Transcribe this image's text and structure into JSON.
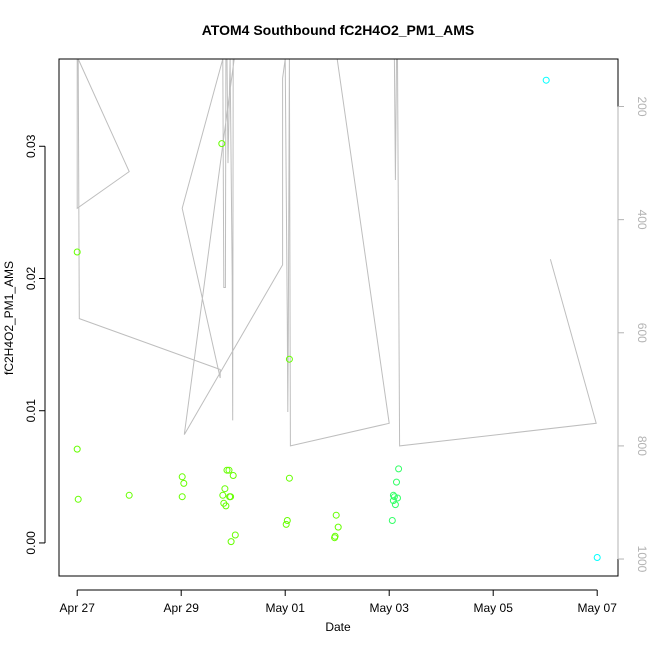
{
  "chart_data": {
    "type": "scatter",
    "title": "ATOM4 Southbound fC2H4O2_PM1_AMS",
    "xlabel": "Date",
    "ylabel": "fC2H4O2_PM1_AMS",
    "x_tick_labels": [
      "Apr 27",
      "Apr 29",
      "May 01",
      "May 03",
      "May 05",
      "May 07"
    ],
    "x_ticks": [
      27,
      29,
      31,
      33,
      35,
      37
    ],
    "xlim": [
      26.65,
      37.4
    ],
    "ylim": [
      -0.0025,
      0.0366
    ],
    "y_ticks": [
      0.0,
      0.01,
      0.02,
      0.03
    ],
    "y_tick_labels": [
      "0.00",
      "0.01",
      "0.02",
      "0.03"
    ],
    "y2_ticks": [
      200,
      400,
      600,
      800,
      1000
    ],
    "y2_tick_labels": [
      "200",
      "400",
      "600",
      "800",
      "1000"
    ],
    "y2lim": [
      1030,
      116
    ],
    "y2_reversed": true,
    "grid": false,
    "legend": "none",
    "colors": {
      "points_low": "#66ff00",
      "points_mid": "#33ff66",
      "points_high": "#00ffff",
      "secondary_line": "#bebebe",
      "secondary_axis": "#b3b3b3"
    },
    "series": [
      {
        "kind": "points",
        "points": [
          {
            "x": 27.0,
            "y": 0.0071,
            "color": "#66ff00"
          },
          {
            "x": 27.0,
            "y": 0.022,
            "color": "#66ff00"
          },
          {
            "x": 27.02,
            "y": 0.0033,
            "color": "#66ff00"
          },
          {
            "x": 28.0,
            "y": 0.0036,
            "color": "#66ff00"
          },
          {
            "x": 29.02,
            "y": 0.005,
            "color": "#66ff00"
          },
          {
            "x": 29.02,
            "y": 0.0035,
            "color": "#66ff00"
          },
          {
            "x": 29.05,
            "y": 0.0045,
            "color": "#66ff00"
          },
          {
            "x": 29.78,
            "y": 0.0302,
            "color": "#66ff00"
          },
          {
            "x": 29.8,
            "y": 0.0036,
            "color": "#66ff00"
          },
          {
            "x": 29.82,
            "y": 0.003,
            "color": "#66ff00"
          },
          {
            "x": 29.84,
            "y": 0.0041,
            "color": "#66ff00"
          },
          {
            "x": 29.86,
            "y": 0.0028,
            "color": "#66ff00"
          },
          {
            "x": 29.88,
            "y": 0.0055,
            "color": "#66ff00"
          },
          {
            "x": 29.92,
            "y": 0.0055,
            "color": "#66ff00"
          },
          {
            "x": 29.93,
            "y": 0.0035,
            "color": "#66ff00"
          },
          {
            "x": 29.95,
            "y": 0.0035,
            "color": "#66ff00"
          },
          {
            "x": 29.96,
            "y": 0.0001,
            "color": "#66ff00"
          },
          {
            "x": 30.0,
            "y": 0.0051,
            "color": "#66ff00"
          },
          {
            "x": 30.04,
            "y": 0.0006,
            "color": "#66ff00"
          },
          {
            "x": 31.02,
            "y": 0.0014,
            "color": "#66ff00"
          },
          {
            "x": 31.04,
            "y": 0.0017,
            "color": "#66ff00"
          },
          {
            "x": 31.08,
            "y": 0.0049,
            "color": "#66ff00"
          },
          {
            "x": 31.08,
            "y": 0.0139,
            "color": "#66ff00"
          },
          {
            "x": 31.95,
            "y": 0.0004,
            "color": "#66ff00"
          },
          {
            "x": 31.96,
            "y": 0.0005,
            "color": "#66ff00"
          },
          {
            "x": 31.98,
            "y": 0.0021,
            "color": "#66ff00"
          },
          {
            "x": 32.02,
            "y": 0.0012,
            "color": "#66ff00"
          },
          {
            "x": 33.06,
            "y": 0.0017,
            "color": "#33ff66"
          },
          {
            "x": 33.08,
            "y": 0.0032,
            "color": "#33ff66"
          },
          {
            "x": 33.08,
            "y": 0.0036,
            "color": "#33ff66"
          },
          {
            "x": 33.1,
            "y": 0.0035,
            "color": "#33ff66"
          },
          {
            "x": 33.12,
            "y": 0.0029,
            "color": "#33ff66"
          },
          {
            "x": 33.14,
            "y": 0.0046,
            "color": "#33ff66"
          },
          {
            "x": 33.16,
            "y": 0.0034,
            "color": "#33ff66"
          },
          {
            "x": 33.18,
            "y": 0.0056,
            "color": "#33ff66"
          },
          {
            "x": 36.02,
            "y": 0.035,
            "color": "#00ffff"
          },
          {
            "x": 37.0,
            "y": -0.0011,
            "color": "#00ffff"
          }
        ]
      },
      {
        "kind": "line",
        "axis": "y2",
        "points": [
          [
            27.0,
            116
          ],
          [
            27.0,
            380
          ],
          [
            28.0,
            315
          ],
          [
            27.02,
            116
          ],
          [
            27.04,
            575
          ],
          [
            29.75,
            665
          ],
          [
            29.75,
            680
          ],
          [
            29.02,
            380
          ],
          [
            29.8,
            116
          ],
          [
            29.82,
            520
          ],
          [
            29.85,
            520
          ],
          [
            29.86,
            116
          ],
          [
            29.88,
            116
          ],
          [
            29.9,
            300
          ],
          [
            29.94,
            116
          ],
          [
            29.98,
            500
          ],
          [
            29.99,
            755
          ],
          [
            30.0,
            116
          ],
          [
            30.02,
            116
          ],
          [
            29.06,
            780
          ],
          [
            30.95,
            480
          ],
          [
            30.95,
            150
          ],
          [
            31.0,
            116
          ],
          [
            31.04,
            580
          ],
          [
            31.05,
            740
          ],
          [
            31.06,
            600
          ],
          [
            31.08,
            116
          ],
          [
            31.1,
            800
          ],
          [
            33.0,
            760
          ],
          [
            32.0,
            116
          ],
          [
            31.98,
            116
          ],
          [
            33.1,
            116
          ],
          [
            33.12,
            330
          ],
          [
            33.14,
            116
          ],
          [
            33.16,
            116
          ],
          [
            33.2,
            800
          ],
          [
            36.98,
            760
          ],
          [
            36.1,
            470
          ]
        ]
      }
    ]
  }
}
